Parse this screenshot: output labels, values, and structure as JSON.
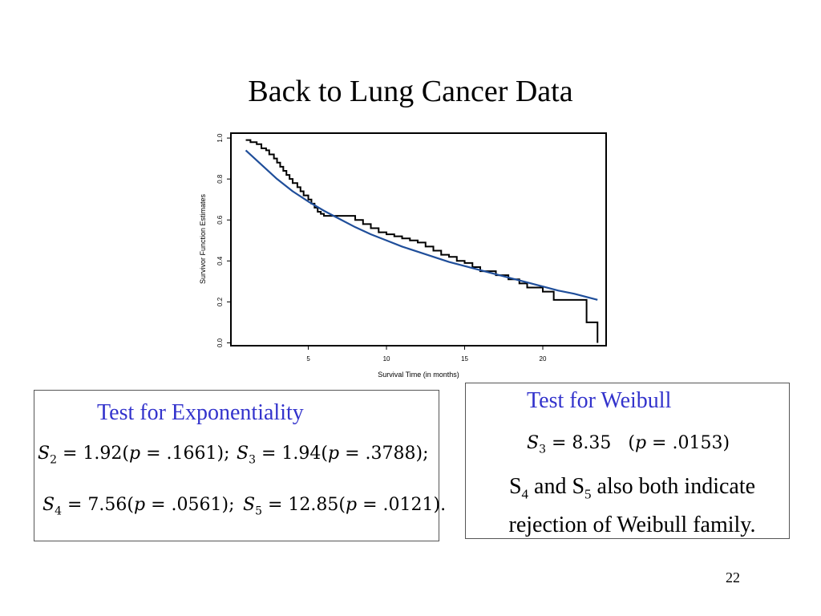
{
  "slide": {
    "title": "Back to Lung Cancer Data",
    "page_number": "22"
  },
  "exp_box": {
    "heading": "Test for Exponentiality",
    "s2": {
      "label": "S",
      "sub": "2",
      "value": "1.92",
      "p": ".1661",
      "sep": ");"
    },
    "s3": {
      "label": "S",
      "sub": "3",
      "value": "1.94",
      "p": ".3788",
      "sep": ");"
    },
    "s4": {
      "label": "S",
      "sub": "4",
      "value": "7.56",
      "p": ".0561",
      "sep": ");"
    },
    "s5": {
      "label": "S",
      "sub": "5",
      "value": "12.85",
      "p": ".0121",
      "sep": ")."
    }
  },
  "weibull_box": {
    "heading": "Test for Weibull",
    "s3": {
      "label": "S",
      "sub": "3",
      "value": "8.35",
      "p": ".0153"
    },
    "text": {
      "s4": "S",
      "s4_sub": "4",
      "and": " and ",
      "s5": "S",
      "s5_sub": "5",
      "rest": " also both indicate rejection of Weibull family."
    }
  },
  "chart_data": {
    "type": "line",
    "xlabel": "Survival Time (in months)",
    "ylabel": "Survivor Function Estimates",
    "xlim": [
      0.1,
      24
    ],
    "ylim": [
      -0.01,
      1.02
    ],
    "xticks": [
      5,
      10,
      15,
      20
    ],
    "yticks": [
      0.0,
      0.2,
      0.4,
      0.6,
      0.8,
      1.0
    ],
    "ytick_labels": [
      "0.0",
      "0.2",
      "0.4",
      "0.6",
      "0.8",
      "1.0"
    ],
    "grid": false,
    "colors": {
      "km": "#000000",
      "fit": "#1f4e9a"
    },
    "series": [
      {
        "kind": "step",
        "x": [
          1.0,
          1.3,
          1.7,
          2.0,
          2.3,
          2.5,
          2.8,
          3.0,
          3.2,
          3.4,
          3.6,
          3.8,
          4.0,
          4.3,
          4.5,
          4.7,
          5.0,
          5.2,
          5.4,
          5.6,
          5.8,
          6.0,
          6.3,
          8.0,
          8.5,
          9.0,
          9.5,
          10.0,
          10.5,
          11.0,
          11.5,
          12.0,
          12.5,
          13.0,
          13.5,
          14.0,
          14.5,
          15.0,
          15.5,
          16.0,
          17.0,
          17.8,
          18.5,
          19.0,
          20.0,
          20.7,
          22.7,
          22.8,
          23.5
        ],
        "y": [
          0.99,
          0.98,
          0.97,
          0.95,
          0.94,
          0.92,
          0.9,
          0.88,
          0.86,
          0.84,
          0.82,
          0.8,
          0.78,
          0.76,
          0.74,
          0.72,
          0.7,
          0.68,
          0.66,
          0.64,
          0.63,
          0.62,
          0.62,
          0.6,
          0.58,
          0.56,
          0.54,
          0.53,
          0.52,
          0.51,
          0.5,
          0.49,
          0.47,
          0.45,
          0.43,
          0.42,
          0.4,
          0.39,
          0.37,
          0.35,
          0.33,
          0.31,
          0.29,
          0.27,
          0.25,
          0.21,
          0.21,
          0.1,
          0.0
        ]
      },
      {
        "kind": "smooth",
        "x": [
          1.0,
          2.0,
          3.0,
          4.0,
          5.0,
          6.0,
          7.0,
          8.0,
          9.0,
          10.0,
          11.0,
          12.0,
          13.0,
          14.0,
          15.0,
          16.0,
          17.0,
          18.0,
          19.0,
          20.0,
          21.0,
          22.0,
          23.5
        ],
        "y": [
          0.94,
          0.87,
          0.8,
          0.74,
          0.69,
          0.645,
          0.605,
          0.565,
          0.53,
          0.5,
          0.47,
          0.445,
          0.42,
          0.395,
          0.375,
          0.355,
          0.335,
          0.315,
          0.295,
          0.275,
          0.255,
          0.24,
          0.21
        ]
      }
    ]
  }
}
